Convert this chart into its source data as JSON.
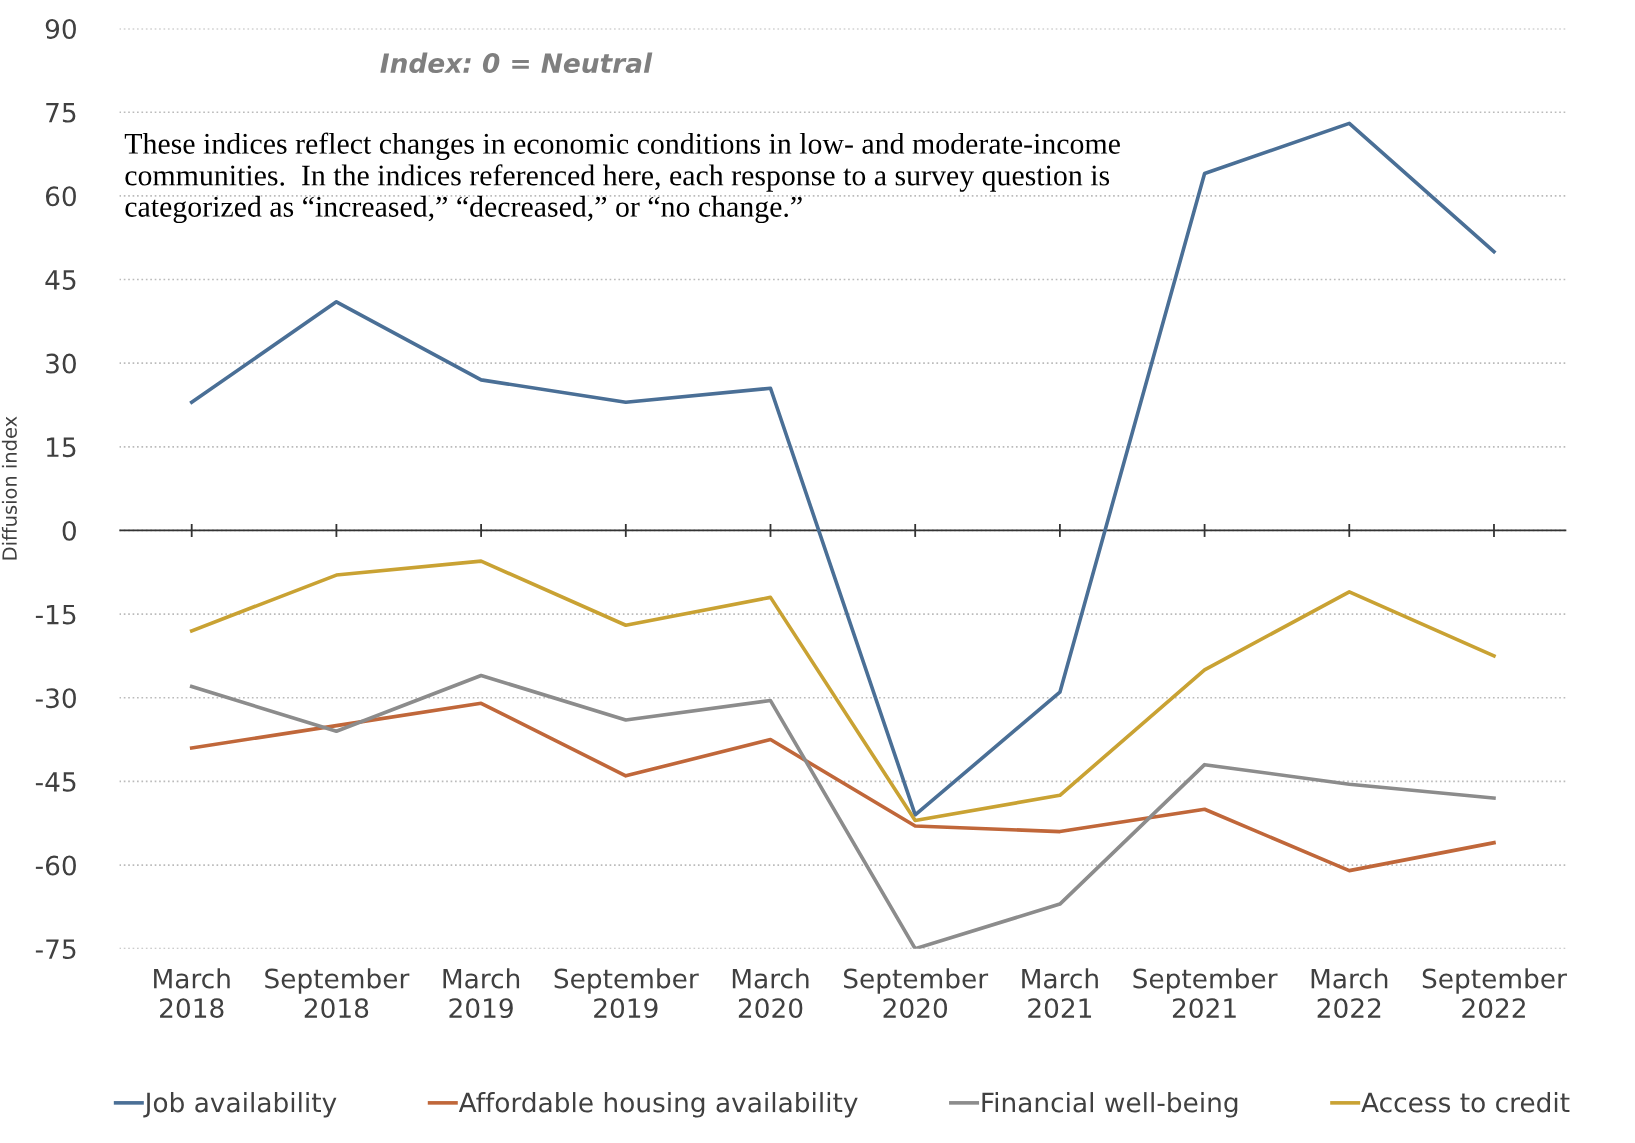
{
  "chart_data": {
    "type": "line",
    "ylabel": "Diffusion index",
    "categories": [
      "March\n2018",
      "September\n2018",
      "March\n2019",
      "September\n2019",
      "March\n2020",
      "September\n2020",
      "March\n2021",
      "September\n2021",
      "March\n2022",
      "September\n2022"
    ],
    "series": [
      {
        "name": "Job availability",
        "color": "#4a6f96",
        "values": [
          23,
          41,
          27,
          23,
          25.5,
          -51,
          -29,
          64,
          73,
          50
        ]
      },
      {
        "name": "Affordable housing availability",
        "color": "#c0673a",
        "values": [
          -39,
          -35,
          -31,
          -44,
          -37.5,
          -53,
          -54,
          -50,
          -61,
          -56
        ]
      },
      {
        "name": "Financial well-being",
        "color": "#8c8c8c",
        "values": [
          -28,
          -36,
          -26,
          -34,
          -30.5,
          -75,
          -67,
          -42,
          -45.5,
          -48
        ]
      },
      {
        "name": "Access to credit",
        "color": "#c9a233",
        "values": [
          -18,
          -8,
          -5.5,
          -17,
          -12,
          -52,
          -47.5,
          -25,
          -11,
          -22.5
        ]
      }
    ],
    "ylim": [
      -75,
      90
    ],
    "yticks": [
      -75,
      -60,
      -45,
      -30,
      -15,
      0,
      15,
      30,
      45,
      60,
      75,
      90
    ],
    "grid": "y",
    "legend": "bottom",
    "marker": "none",
    "line_style": "solid",
    "annotations": [
      "Index: 0 = Neutral",
      "These indices reflect changes in economic conditions in low- and moderate-income\ncommunities.  In the indices referenced here, each response to a survey question is\ncategorized as “increased,” “decreased,” or “no change.”"
    ]
  }
}
